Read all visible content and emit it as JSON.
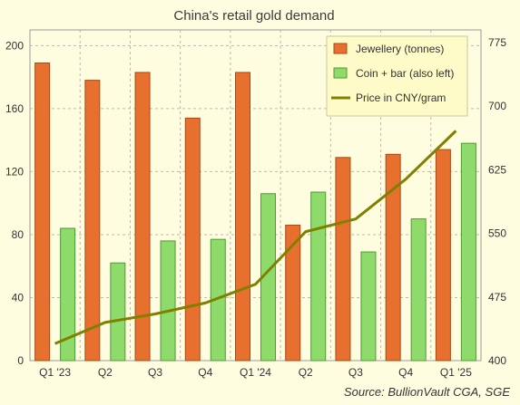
{
  "chart_data": {
    "type": "bar",
    "title": "China's retail gold demand",
    "categories": [
      "Q1 '23",
      "Q2",
      "Q3",
      "Q4",
      "Q1 '24",
      "Q2",
      "Q3",
      "Q4",
      "Q1 '25"
    ],
    "series": [
      {
        "name": "Jewellery (tonnes)",
        "kind": "bar",
        "axis": "left",
        "color": "#e8702f",
        "values": [
          189,
          178,
          183,
          154,
          183,
          86,
          129,
          131,
          134
        ]
      },
      {
        "name": "Coin + bar (also left)",
        "kind": "bar",
        "axis": "left",
        "color": "#8edb6c",
        "values": [
          84,
          62,
          76,
          77,
          106,
          107,
          69,
          90,
          138
        ]
      },
      {
        "name": "Price in CNY/gram",
        "kind": "line",
        "axis": "right",
        "color": "#808000",
        "values": [
          420,
          445,
          455,
          468,
          490,
          552,
          567,
          614,
          671
        ]
      }
    ],
    "ylim": [
      0,
      210
    ],
    "yticks": [
      0,
      40,
      80,
      120,
      160,
      200
    ],
    "y2lim": [
      400,
      790
    ],
    "y2ticks": [
      400,
      475,
      550,
      625,
      700,
      775
    ],
    "grid": true,
    "legend": "top-right",
    "source": "Source:  BullionVault CGA, SGE"
  }
}
